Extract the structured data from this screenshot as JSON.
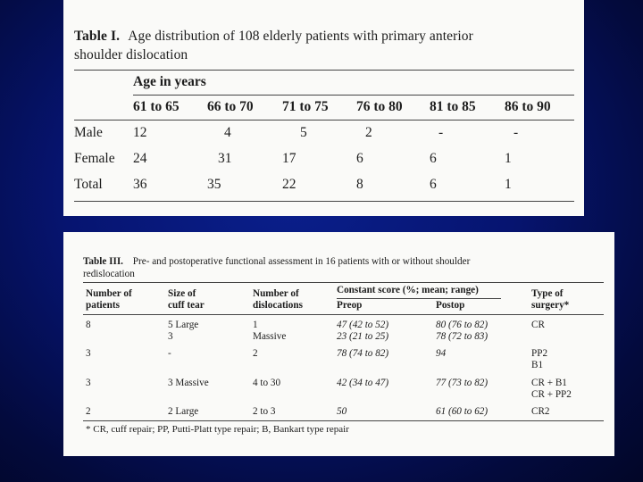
{
  "table1": {
    "title_label": "Table I.",
    "title_text": "Age distribution of 108 elderly patients with primary anterior",
    "title_text2": "shoulder dislocation",
    "group_header": "Age in years",
    "columns": [
      "61 to 65",
      "66 to 70",
      "71 to 75",
      "76 to 80",
      "81 to 85",
      "86 to 90"
    ],
    "rows": [
      {
        "label": "Male",
        "values": [
          "12",
          "4",
          "5",
          "2",
          "-",
          "-"
        ]
      },
      {
        "label": "Female",
        "values": [
          "24",
          "31",
          "17",
          "6",
          "6",
          "1"
        ]
      },
      {
        "label": "Total",
        "values": [
          "36",
          "35",
          "22",
          "8",
          "6",
          "1"
        ]
      }
    ]
  },
  "table3": {
    "title_label": "Table III.",
    "title_text": "Pre- and postoperative functional assessment in 16 patients with or without shoulder",
    "title_text2": "redislocation",
    "headers": {
      "patients1": "Number of",
      "patients2": "patients",
      "cuff1": "Size of",
      "cuff2": "cuff tear",
      "disloc1": "Number of",
      "disloc2": "dislocations",
      "constant": "Constant score (%; mean; range)",
      "preop": "Preop",
      "postop": "Postop",
      "surgery1": "Type of",
      "surgery2": "surgery*"
    },
    "rows": [
      {
        "patients": "8",
        "cuff": [
          "5 Large",
          "3"
        ],
        "disloc": [
          "1",
          "Massive"
        ],
        "preop": [
          "47 (42 to 52)",
          "23 (21 to 25)"
        ],
        "postop": [
          "80 (76 to 82)",
          "78 (72 to 83)"
        ],
        "surgery": [
          "CR",
          ""
        ]
      },
      {
        "patients": "3",
        "cuff": [
          "-",
          ""
        ],
        "disloc": [
          "2",
          ""
        ],
        "preop": [
          "78 (74 to 82)",
          ""
        ],
        "postop": [
          "94",
          ""
        ],
        "surgery": [
          "PP2",
          "B1"
        ]
      },
      {
        "patients": "3",
        "cuff": [
          "3 Massive",
          ""
        ],
        "disloc": [
          "4 to 30",
          ""
        ],
        "preop": [
          "42 (34 to 47)",
          ""
        ],
        "postop": [
          "77 (73 to 82)",
          ""
        ],
        "surgery": [
          "CR + B1",
          "CR + PP2"
        ]
      },
      {
        "patients": "2",
        "cuff": [
          "2 Large",
          ""
        ],
        "disloc": [
          "2 to 3",
          ""
        ],
        "preop": [
          "50",
          ""
        ],
        "postop": [
          "61 (60 to 62)",
          ""
        ],
        "surgery": [
          "CR2",
          ""
        ]
      }
    ],
    "footnote": "* CR, cuff repair; PP, Putti-Platt type repair; B, Bankart type repair"
  }
}
